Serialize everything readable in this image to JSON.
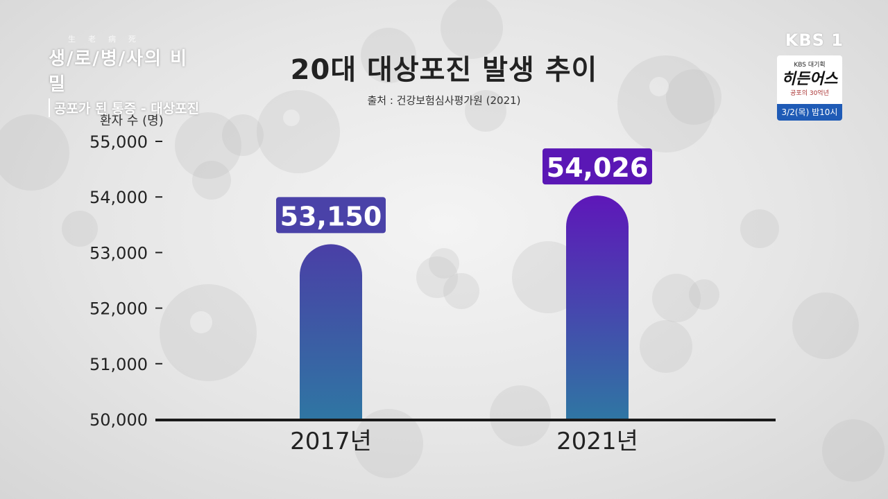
{
  "program": {
    "small": "生老病死",
    "name": "생/로/병/사의 비밀",
    "subtitle": "공포가 된 통증 - 대상포진"
  },
  "broadcaster": {
    "logo": "KBS 1",
    "promo_top": "KBS 대기획",
    "promo_show": "히든어스",
    "promo_tag": "공포의 30억년",
    "promo_time": "3/2(목) 밤10시",
    "promo_color": "#1f5bb6"
  },
  "chart_data": {
    "type": "bar",
    "title": "20대 대상포진 발생 추이",
    "source": "출처 : 건강보험심사평가원 (2021)",
    "ylabel": "환자 수 (명)",
    "xlabel": "",
    "categories": [
      "2017년",
      "2021년"
    ],
    "values": [
      53150,
      54026
    ],
    "value_labels": [
      "53,150",
      "54,026"
    ],
    "ylim": [
      50000,
      55000
    ],
    "yticks": [
      50000,
      51000,
      52000,
      53000,
      54000,
      55000
    ],
    "ytick_labels": [
      "50,000",
      "51,000",
      "52,000",
      "53,000",
      "54,000",
      "55,000"
    ],
    "grid": false,
    "colors": {
      "bar1_top": "#4a3fa6",
      "bar2_top": "#5e17b9",
      "bar_bottom": "#2f76a3",
      "label1_bg": "#4a42a8",
      "label2_bg": "#5a17b5"
    }
  }
}
